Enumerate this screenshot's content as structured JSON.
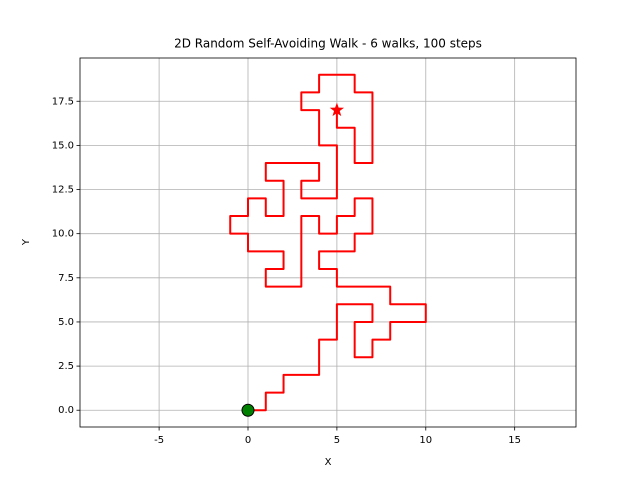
{
  "chart_data": {
    "type": "line",
    "title": "2D Random Self-Avoiding Walk - 6 walks, 100 steps",
    "xlabel": "X",
    "ylabel": "Y",
    "x": [
      0,
      1,
      1,
      2,
      2,
      4,
      4,
      5,
      5,
      7,
      7,
      6,
      6,
      7,
      7,
      8,
      8,
      10,
      10,
      8,
      8,
      5,
      5,
      4,
      4,
      6,
      6,
      7,
      7,
      6,
      6,
      5,
      5,
      4,
      4,
      3,
      3,
      1,
      1,
      2,
      2,
      0,
      0,
      -1,
      -1,
      0,
      0,
      1,
      1,
      2,
      2,
      1,
      1,
      4,
      4,
      3,
      3,
      5,
      5,
      4,
      4,
      3,
      3,
      4,
      4,
      6,
      6,
      7,
      7,
      6,
      6,
      5,
      5
    ],
    "values": [
      0,
      0,
      1,
      1,
      2,
      2,
      4,
      4,
      6,
      6,
      5,
      5,
      3,
      3,
      4,
      4,
      5,
      5,
      6,
      6,
      7,
      7,
      8,
      8,
      9,
      9,
      10,
      10,
      12,
      12,
      11,
      11,
      10,
      10,
      11,
      11,
      7,
      7,
      8,
      8,
      9,
      9,
      10,
      10,
      11,
      11,
      12,
      12,
      11,
      11,
      13,
      13,
      14,
      14,
      13,
      13,
      12,
      12,
      15,
      15,
      17,
      17,
      18,
      18,
      19,
      19,
      18,
      18,
      14,
      14,
      16,
      16,
      17
    ],
    "color": "red",
    "start_color": "green",
    "end_color": "red",
    "xlim": [
      -9.45,
      18.45
    ],
    "ylim": [
      -0.95,
      19.95
    ],
    "xticks": [
      -5,
      0,
      5,
      10,
      15
    ],
    "yticks": [
      {
        "value": 0,
        "label": "0.0"
      },
      2.5,
      {
        "value": 5,
        "label": "5.0"
      },
      7.5,
      {
        "value": 10,
        "label": "10.0"
      },
      12.5,
      {
        "value": 15,
        "label": "15.0"
      },
      17.5
    ],
    "grid": true
  }
}
